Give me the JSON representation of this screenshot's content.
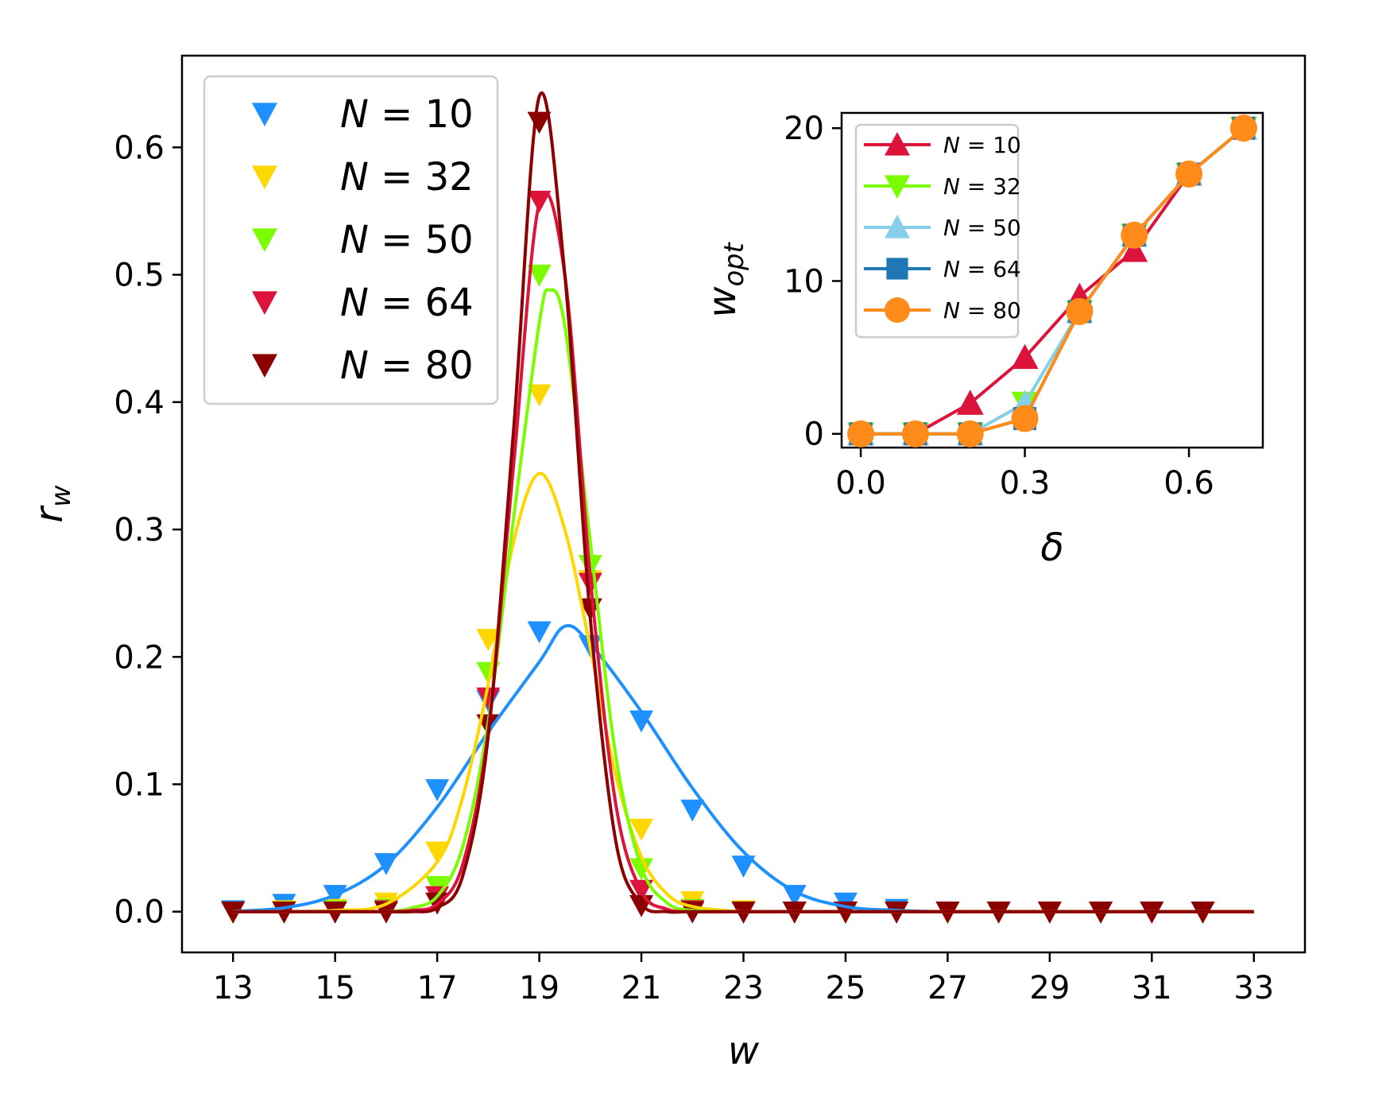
{
  "chart_data": [
    {
      "type": "scatter",
      "xlabel": "w",
      "ylabel": "r_w",
      "xlim": [
        12,
        34
      ],
      "ylim": [
        -0.032,
        0.672
      ],
      "xticks": [
        "13",
        "15",
        "17",
        "19",
        "21",
        "23",
        "25",
        "27",
        "29",
        "31",
        "33"
      ],
      "yticks": [
        "0.0",
        "0.1",
        "0.2",
        "0.3",
        "0.4",
        "0.5",
        "0.6"
      ],
      "legend_position": "upper-left",
      "grid": false,
      "legend": [
        {
          "label": "N = 10",
          "color": "#1E90FF"
        },
        {
          "label": "N = 32",
          "color": "#FFD700"
        },
        {
          "label": "N = 50",
          "color": "#7CFC00"
        },
        {
          "label": "N = 64",
          "color": "#DC143C"
        },
        {
          "label": "N = 80",
          "color": "#8B0000"
        }
      ],
      "series": [
        {
          "name": "N = 10",
          "color": "#1E90FF",
          "marker": "triangle-down",
          "fit_curve": true,
          "x": [
            13,
            14,
            15,
            16,
            17,
            18,
            19,
            20,
            21,
            22,
            23,
            24,
            25,
            26,
            27,
            28,
            29,
            30,
            31,
            32
          ],
          "y": [
            0.001,
            0.006,
            0.013,
            0.038,
            0.096,
            0.166,
            0.22,
            0.209,
            0.15,
            0.08,
            0.036,
            0.013,
            0.007,
            0.002,
            0.0,
            0.0,
            0.0,
            0.0,
            0.0,
            0.0
          ],
          "fit_x": [
            13,
            14,
            15,
            16,
            17,
            18,
            19,
            19.5,
            20,
            21,
            22,
            23,
            24,
            25,
            26,
            27,
            28,
            29,
            30,
            31,
            32,
            33
          ],
          "fit_y": [
            0.0003,
            0.003,
            0.013,
            0.037,
            0.082,
            0.141,
            0.196,
            0.224,
            0.21,
            0.157,
            0.097,
            0.047,
            0.016,
            0.004,
            0.001,
            0.0,
            0.0,
            0.0,
            0.0,
            0.0,
            0.0,
            0.0
          ]
        },
        {
          "name": "N = 32",
          "color": "#FFD700",
          "marker": "triangle-down",
          "fit_curve": true,
          "x": [
            13,
            14,
            15,
            16,
            17,
            18,
            19,
            20,
            21,
            22,
            23,
            24,
            25,
            26,
            27,
            28,
            29,
            30,
            31,
            32
          ],
          "y": [
            0.0,
            0.001,
            0.002,
            0.007,
            0.047,
            0.214,
            0.406,
            0.26,
            0.065,
            0.008,
            0.001,
            0.0,
            0.0,
            0.0,
            0.0,
            0.0,
            0.0,
            0.0,
            0.0,
            0.0
          ],
          "fit_x": [
            13,
            14,
            15,
            16,
            17,
            17.5,
            18,
            18.5,
            19,
            19.5,
            20,
            20.5,
            21,
            21.5,
            22,
            23,
            24,
            25,
            26,
            27,
            28,
            29,
            30,
            31,
            32,
            33
          ],
          "fit_y": [
            0.0,
            0.0,
            0.001,
            0.006,
            0.039,
            0.09,
            0.179,
            0.291,
            0.344,
            0.3,
            0.207,
            0.107,
            0.043,
            0.014,
            0.004,
            0.0,
            0.0,
            0.0,
            0.0,
            0.0,
            0.0,
            0.0,
            0.0,
            0.0,
            0.0,
            0.0
          ]
        },
        {
          "name": "N = 50",
          "color": "#7CFC00",
          "marker": "triangle-down",
          "fit_curve": true,
          "x": [
            13,
            14,
            15,
            16,
            17,
            18,
            19,
            20,
            21,
            22,
            23,
            24,
            25,
            26,
            27,
            28,
            29,
            30,
            31,
            32
          ],
          "y": [
            0.0,
            0.0,
            0.001,
            0.002,
            0.02,
            0.188,
            0.5,
            0.272,
            0.034,
            0.002,
            0.0,
            0.0,
            0.0,
            0.0,
            0.0,
            0.0,
            0.0,
            0.0,
            0.0,
            0.0
          ],
          "fit_x": [
            13,
            15,
            16,
            16.5,
            17,
            17.5,
            18,
            18.5,
            19,
            19.2,
            19.5,
            20,
            20.5,
            21,
            21.5,
            22,
            23,
            24,
            25,
            26,
            27,
            28,
            29,
            30,
            31,
            32,
            33
          ],
          "fit_y": [
            0.0,
            0.0,
            0.0,
            0.003,
            0.012,
            0.051,
            0.149,
            0.31,
            0.462,
            0.488,
            0.46,
            0.29,
            0.122,
            0.035,
            0.007,
            0.001,
            0.0,
            0.0,
            0.0,
            0.0,
            0.0,
            0.0,
            0.0,
            0.0,
            0.0,
            0.0,
            0.0
          ]
        },
        {
          "name": "N = 64",
          "color": "#DC143C",
          "marker": "triangle-down",
          "fit_curve": true,
          "x": [
            13,
            14,
            15,
            16,
            17,
            18,
            19,
            20,
            21,
            22,
            23,
            24,
            25,
            26,
            27,
            28,
            29,
            30,
            31,
            32
          ],
          "y": [
            0.0,
            0.0,
            0.0,
            0.001,
            0.012,
            0.168,
            0.558,
            0.258,
            0.017,
            0.001,
            0.0,
            0.0,
            0.0,
            0.0,
            0.0,
            0.0,
            0.0,
            0.0,
            0.0,
            0.0
          ],
          "fit_x": [
            13,
            15,
            16,
            16.5,
            17,
            17.5,
            18,
            18.5,
            19,
            19.5,
            20,
            20.5,
            21,
            21.5,
            22,
            23,
            24,
            25,
            26,
            27,
            28,
            29,
            30,
            31,
            32,
            33
          ],
          "fit_y": [
            0.0,
            0.0,
            0.0,
            0.001,
            0.006,
            0.037,
            0.142,
            0.352,
            0.556,
            0.5,
            0.262,
            0.084,
            0.016,
            0.002,
            0.0,
            0.0,
            0.0,
            0.0,
            0.0,
            0.0,
            0.0,
            0.0,
            0.0,
            0.0,
            0.0,
            0.0
          ]
        },
        {
          "name": "N = 80",
          "color": "#8B0000",
          "marker": "triangle-down",
          "fit_curve": true,
          "x": [
            13,
            14,
            15,
            16,
            17,
            18,
            19,
            20,
            21,
            22,
            23,
            24,
            25,
            26,
            27,
            28,
            29,
            30,
            31,
            32
          ],
          "y": [
            0.0,
            0.0,
            0.0,
            0.0,
            0.007,
            0.147,
            0.62,
            0.238,
            0.005,
            0.0,
            0.0,
            0.0,
            0.0,
            0.0,
            0.0,
            0.0,
            0.0,
            0.0,
            0.0,
            0.0
          ],
          "fit_x": [
            13,
            15,
            16,
            16.5,
            17,
            17.5,
            18,
            18.5,
            19,
            19.5,
            20,
            20.5,
            21,
            21.5,
            22,
            23,
            24,
            25,
            26,
            27,
            28,
            29,
            30,
            31,
            32,
            33
          ],
          "fit_y": [
            0.0,
            0.0,
            0.0,
            0.0,
            0.003,
            0.028,
            0.138,
            0.38,
            0.64,
            0.5,
            0.23,
            0.055,
            0.006,
            0.0,
            0.0,
            0.0,
            0.0,
            0.0,
            0.0,
            0.0,
            0.0,
            0.0,
            0.0,
            0.0,
            0.0,
            0.0
          ]
        }
      ]
    },
    {
      "type": "line",
      "inset": true,
      "xlabel": "δ",
      "ylabel": "w_opt",
      "xlim": [
        -0.035,
        0.735
      ],
      "ylim": [
        -0.9,
        21
      ],
      "xticks": [
        "0.0",
        "0.3",
        "0.6"
      ],
      "yticks": [
        "0",
        "10",
        "20"
      ],
      "legend_position": "upper-left",
      "grid": false,
      "series": [
        {
          "name": "N = 10",
          "color": "#DC143C",
          "marker": "triangle-up",
          "x": [
            0,
            0.1,
            0.2,
            0.3,
            0.4,
            0.5,
            0.6,
            0.7
          ],
          "y": [
            0,
            0,
            2,
            5,
            9,
            12,
            17,
            20
          ]
        },
        {
          "name": "N = 32",
          "color": "#7CFC00",
          "marker": "triangle-down",
          "x": [
            0,
            0.1,
            0.2,
            0.3,
            0.4,
            0.5,
            0.6,
            0.7
          ],
          "y": [
            0,
            0,
            0,
            2,
            8,
            13,
            17,
            20
          ]
        },
        {
          "name": "N = 50",
          "color": "#87CEEB",
          "marker": "triangle-up",
          "x": [
            0,
            0.1,
            0.2,
            0.3,
            0.4,
            0.5,
            0.6,
            0.7
          ],
          "y": [
            0,
            0,
            0,
            2,
            8,
            13,
            17,
            20
          ]
        },
        {
          "name": "N = 64",
          "color": "#1F77B4",
          "marker": "square",
          "x": [
            0,
            0.1,
            0.2,
            0.3,
            0.4,
            0.5,
            0.6,
            0.7
          ],
          "y": [
            0,
            0,
            0,
            1,
            8,
            13,
            17,
            20
          ]
        },
        {
          "name": "N = 80",
          "color": "#FF8C1A",
          "marker": "circle",
          "x": [
            0,
            0.1,
            0.2,
            0.3,
            0.4,
            0.5,
            0.6,
            0.7
          ],
          "y": [
            0,
            0,
            0,
            1,
            8,
            13,
            17,
            20
          ]
        }
      ]
    }
  ]
}
